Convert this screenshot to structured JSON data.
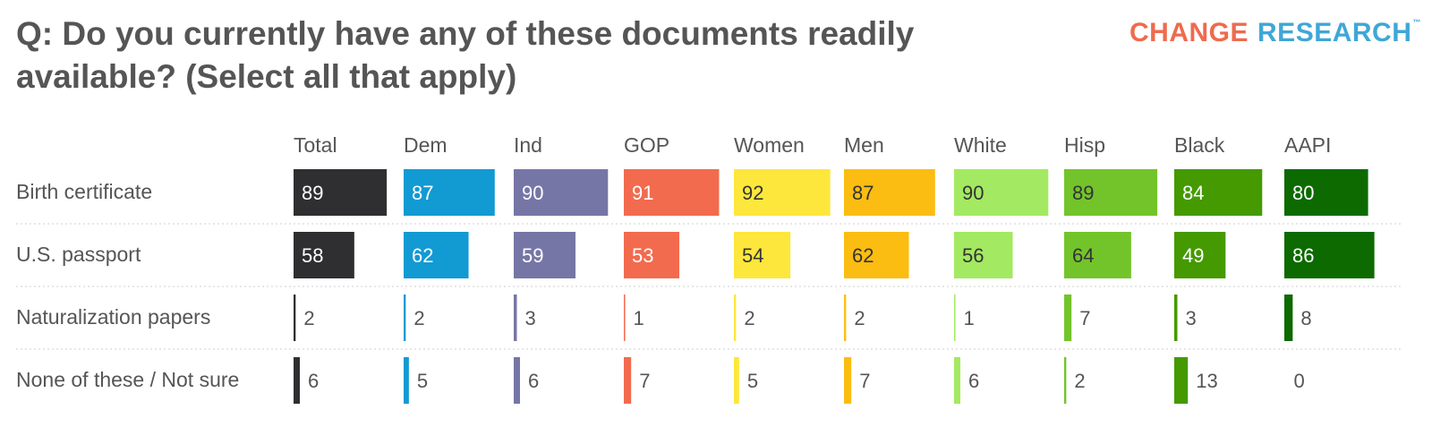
{
  "title": "Q: Do you currently have any of these documents readily available? (Select all that apply)",
  "logo": {
    "word1": "CHANGE",
    "word2": "RESEARCH",
    "tm": "™"
  },
  "colors": {
    "Total": "#2f2e30",
    "Dem": "#129ad3",
    "Ind": "#7676a6",
    "GOP": "#f26b4e",
    "Women": "#fde73c",
    "Men": "#fbbd12",
    "White": "#a3e961",
    "Hisp": "#73c42b",
    "Black": "#449a00",
    "AAPI": "#0c6a00"
  },
  "chart_data": {
    "type": "table",
    "title": "Q: Do you currently have any of these documents readily available? (Select all that apply)",
    "columns": [
      "Total",
      "Dem",
      "Ind",
      "GOP",
      "Women",
      "Men",
      "White",
      "Hisp",
      "Black",
      "AAPI"
    ],
    "rows": [
      {
        "label": "Birth certificate",
        "values": [
          89,
          87,
          90,
          91,
          92,
          87,
          90,
          89,
          84,
          80
        ]
      },
      {
        "label": "U.S. passport",
        "values": [
          58,
          62,
          59,
          53,
          54,
          62,
          56,
          64,
          49,
          86
        ]
      },
      {
        "label": "Naturalization papers",
        "values": [
          2,
          2,
          3,
          1,
          2,
          2,
          1,
          7,
          3,
          8
        ]
      },
      {
        "label": "None of these / Not sure",
        "values": [
          6,
          5,
          6,
          7,
          5,
          7,
          6,
          2,
          13,
          0
        ]
      }
    ],
    "unit": "percent",
    "max": 100
  }
}
